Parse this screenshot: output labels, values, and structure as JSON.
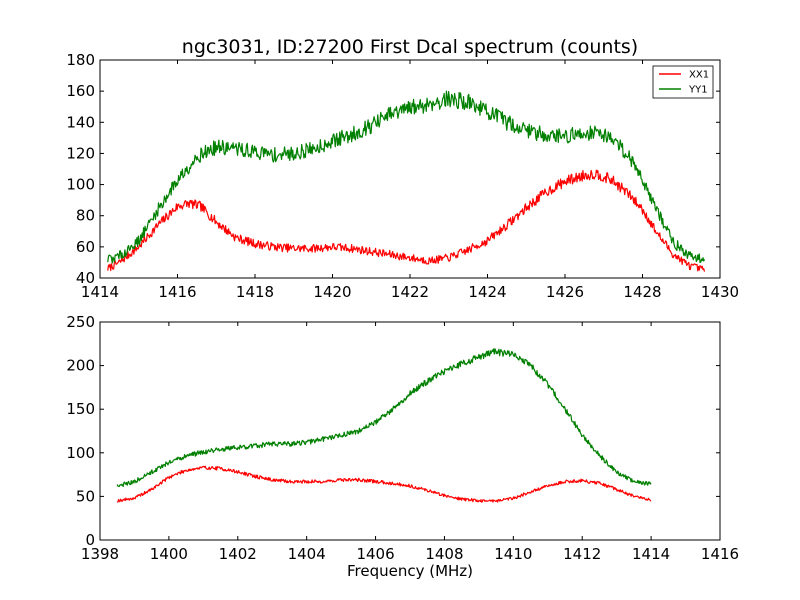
{
  "chart_data": [
    {
      "type": "line",
      "title": "ngc3031, ID:27200 First Dcal spectrum (counts)",
      "xlabel": "",
      "ylabel": "",
      "xlim": [
        1414,
        1430
      ],
      "ylim": [
        40,
        180
      ],
      "xticks": [
        "1414",
        "1416",
        "1418",
        "1420",
        "1422",
        "1424",
        "1426",
        "1428",
        "1430"
      ],
      "yticks": [
        "40",
        "60",
        "80",
        "100",
        "120",
        "140",
        "160",
        "180"
      ],
      "grid": false,
      "legend": "top-right",
      "series": [
        {
          "name": "XX1",
          "color": "#ff0000",
          "x": [
            1414.2,
            1414.5,
            1415.0,
            1415.5,
            1416.0,
            1416.3,
            1416.6,
            1417.0,
            1417.5,
            1418.0,
            1418.5,
            1419.0,
            1419.5,
            1420.0,
            1420.5,
            1421.0,
            1421.5,
            1422.0,
            1422.5,
            1423.0,
            1423.5,
            1424.0,
            1424.5,
            1425.0,
            1425.5,
            1426.0,
            1426.5,
            1426.8,
            1427.2,
            1427.6,
            1428.0,
            1428.4,
            1428.8,
            1429.2,
            1429.6
          ],
          "y": [
            46,
            50,
            60,
            74,
            86,
            88,
            86,
            76,
            66,
            62,
            60,
            59,
            59,
            60,
            59,
            57,
            55,
            53,
            51,
            53,
            58,
            64,
            74,
            85,
            95,
            102,
            106,
            107,
            103,
            95,
            84,
            68,
            55,
            48,
            45
          ]
        },
        {
          "name": "YY1",
          "color": "#008000",
          "x": [
            1414.2,
            1414.5,
            1415.0,
            1415.5,
            1416.0,
            1416.5,
            1417.0,
            1417.5,
            1418.0,
            1418.5,
            1419.0,
            1419.5,
            1420.0,
            1420.5,
            1421.0,
            1421.5,
            1422.0,
            1422.5,
            1423.0,
            1423.5,
            1424.0,
            1424.5,
            1425.0,
            1425.5,
            1426.0,
            1426.5,
            1426.8,
            1427.2,
            1427.6,
            1428.0,
            1428.4,
            1428.8,
            1429.2,
            1429.6
          ],
          "y": [
            52,
            54,
            64,
            84,
            103,
            118,
            124,
            123,
            121,
            119,
            120,
            123,
            128,
            132,
            138,
            145,
            149,
            152,
            155,
            153,
            147,
            140,
            135,
            132,
            131,
            133,
            134,
            130,
            120,
            104,
            82,
            63,
            54,
            52
          ]
        }
      ]
    },
    {
      "type": "line",
      "title": "",
      "xlabel": "Frequency (MHz)",
      "ylabel": "",
      "xlim": [
        1398,
        1416
      ],
      "ylim": [
        0,
        250
      ],
      "xticks": [
        "1398",
        "1400",
        "1402",
        "1404",
        "1406",
        "1408",
        "1410",
        "1412",
        "1414",
        "1416"
      ],
      "yticks": [
        "0",
        "50",
        "100",
        "150",
        "200",
        "250"
      ],
      "grid": false,
      "series": [
        {
          "color": "#ff0000",
          "x": [
            1398.5,
            1399.0,
            1399.5,
            1400.0,
            1400.5,
            1401.0,
            1401.5,
            1402.0,
            1402.5,
            1403.0,
            1403.5,
            1404.0,
            1404.5,
            1405.0,
            1405.5,
            1406.0,
            1406.5,
            1407.0,
            1407.5,
            1408.0,
            1408.5,
            1409.0,
            1409.5,
            1410.0,
            1410.5,
            1411.0,
            1411.5,
            1412.0,
            1412.5,
            1413.0,
            1413.5,
            1414.0
          ],
          "y": [
            45,
            48,
            58,
            72,
            80,
            83,
            82,
            78,
            73,
            69,
            67,
            67,
            67,
            69,
            69,
            67,
            65,
            62,
            57,
            51,
            47,
            45,
            45,
            48,
            55,
            62,
            67,
            68,
            65,
            58,
            50,
            46
          ]
        },
        {
          "color": "#008000",
          "x": [
            1398.5,
            1399.0,
            1399.5,
            1400.0,
            1400.5,
            1401.0,
            1401.5,
            1402.0,
            1402.5,
            1403.0,
            1403.5,
            1404.0,
            1404.5,
            1405.0,
            1405.5,
            1406.0,
            1406.5,
            1407.0,
            1407.5,
            1408.0,
            1408.5,
            1409.0,
            1409.5,
            1410.0,
            1410.5,
            1411.0,
            1411.5,
            1412.0,
            1412.5,
            1413.0,
            1413.5,
            1414.0
          ],
          "y": [
            62,
            67,
            78,
            89,
            96,
            101,
            104,
            106,
            108,
            110,
            110,
            112,
            116,
            120,
            125,
            135,
            150,
            168,
            182,
            193,
            202,
            210,
            216,
            212,
            200,
            178,
            150,
            120,
            97,
            78,
            67,
            64
          ]
        }
      ]
    }
  ]
}
